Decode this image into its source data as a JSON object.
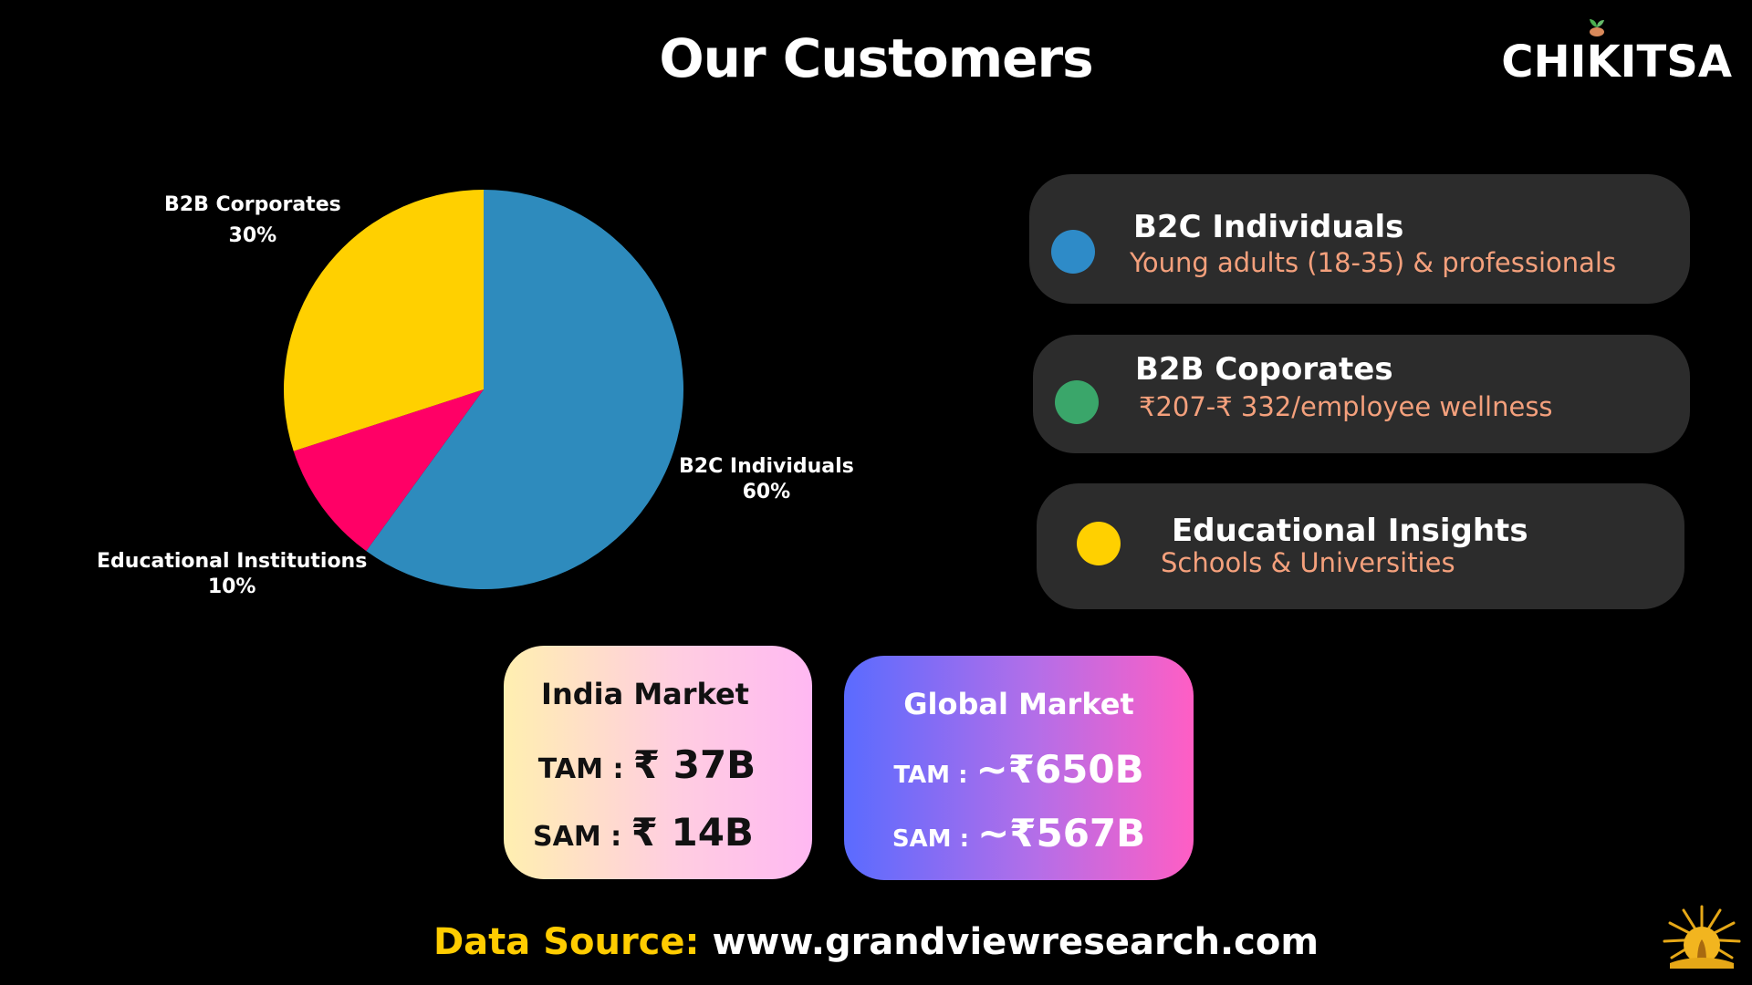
{
  "header": {
    "title": "Our Customers",
    "brand": "CHIKITSA"
  },
  "chart_data": {
    "type": "pie",
    "slices": [
      {
        "label": "B2C Individuals",
        "value": 60,
        "value_label": "60%",
        "color": "#2e8bbd"
      },
      {
        "label": "Educational Institutions",
        "value": 10,
        "value_label": "10%",
        "color": "#ff0066"
      },
      {
        "label": "B2B Corporates",
        "value": 30,
        "value_label": "30%",
        "color": "#ffd000"
      }
    ],
    "start_angle_deg": 0,
    "direction": "clockwise-from-top",
    "legend": "none"
  },
  "segments": [
    {
      "title": "B2C Individuals",
      "subtitle": "Young adults (18-35) & professionals",
      "dot_color": "#2e8bc8"
    },
    {
      "title": "B2B Coporates",
      "subtitle": "₹207-₹ 332/employee wellness",
      "dot_color": "#3aa66a"
    },
    {
      "title": "Educational Insights",
      "subtitle": "Schools & Universities",
      "dot_color": "#ffd000"
    }
  ],
  "markets": {
    "india": {
      "title": "India Market",
      "tam_label": "TAM : ",
      "tam_value": "₹ 37B",
      "sam_label": "SAM : ",
      "sam_value": "₹ 14B"
    },
    "global": {
      "title": "Global  Market",
      "tam_label": "TAM : ",
      "tam_value": "~₹650B",
      "sam_label": "SAM : ",
      "sam_value": "~₹567B"
    }
  },
  "footer": {
    "source_label": "Data Source:",
    "source_value": " www.grandviewresearch.com"
  },
  "colors": {
    "background": "#000000",
    "card": "#2c2c2c",
    "subtitle": "#f4a07c",
    "source_label": "#ffcc00"
  }
}
